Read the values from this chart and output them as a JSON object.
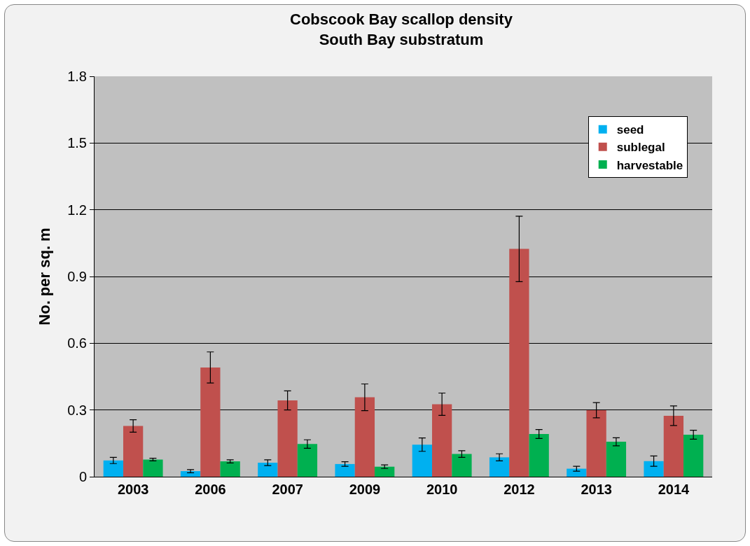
{
  "chart_data": {
    "type": "bar",
    "title": "Cobscook Bay scallop density",
    "subtitle": "South Bay substratum",
    "ylabel": "No. per sq. m",
    "categories": [
      "2003",
      "2006",
      "2007",
      "2009",
      "2010",
      "2012",
      "2013",
      "2014"
    ],
    "series": [
      {
        "name": "seed",
        "color": "#00b0f0",
        "values": [
          0.073,
          0.025,
          0.063,
          0.057,
          0.144,
          0.087,
          0.036,
          0.07
        ],
        "errors": [
          0.014,
          0.007,
          0.013,
          0.01,
          0.03,
          0.016,
          0.011,
          0.023
        ]
      },
      {
        "name": "sublegal",
        "color": "#c0504d",
        "values": [
          0.228,
          0.491,
          0.343,
          0.357,
          0.326,
          1.024,
          0.299,
          0.274
        ],
        "errors": [
          0.028,
          0.07,
          0.043,
          0.06,
          0.05,
          0.147,
          0.034,
          0.044
        ]
      },
      {
        "name": "harvestable",
        "color": "#00b050",
        "values": [
          0.077,
          0.069,
          0.147,
          0.045,
          0.102,
          0.192,
          0.157,
          0.189
        ],
        "errors": [
          0.006,
          0.007,
          0.019,
          0.008,
          0.015,
          0.02,
          0.018,
          0.02
        ]
      }
    ],
    "ylim": [
      0,
      1.8
    ],
    "yticks": [
      0,
      0.3,
      0.6,
      0.9,
      1.2,
      1.5,
      1.8
    ],
    "grid": "y",
    "legend": "top right"
  }
}
